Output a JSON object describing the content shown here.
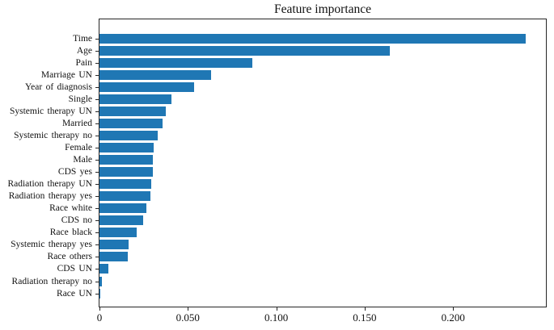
{
  "page": {
    "background": "#ffffff"
  },
  "chart_data": {
    "type": "bar",
    "orientation": "horizontal",
    "title": "Feature importance",
    "categories": [
      "Time",
      "Age",
      "Pain",
      "Marriage UN",
      "Year of diagnosis",
      "Single",
      "Systemic therapy UN",
      "Married",
      "Systemic therapy no",
      "Female",
      "Male",
      "CDS yes",
      "Radiation therapy UN",
      "Radiation therapy yes",
      "Race white",
      "CDS no",
      "Race black",
      "Systemic therapy yes",
      "Race others",
      "CDS UN",
      "Radiation therapy no",
      "Race UN"
    ],
    "values": [
      0.241,
      0.164,
      0.0865,
      0.063,
      0.0535,
      0.0405,
      0.0375,
      0.0355,
      0.033,
      0.0305,
      0.0302,
      0.03,
      0.0293,
      0.029,
      0.0265,
      0.0246,
      0.0212,
      0.0163,
      0.016,
      0.005,
      0.0012,
      0.0004
    ],
    "xlabel": "",
    "ylabel": "",
    "xlim": [
      0,
      0.2525
    ],
    "x_ticks": [
      0,
      0.05,
      0.1,
      0.15,
      0.2
    ],
    "x_tick_labels": [
      "0",
      "0.050",
      "0.100",
      "0.150",
      "0.200"
    ],
    "bar_color": "#1f77b4",
    "axis_color": "#262626",
    "text_color": "#111111",
    "grid": false,
    "legend": null
  }
}
